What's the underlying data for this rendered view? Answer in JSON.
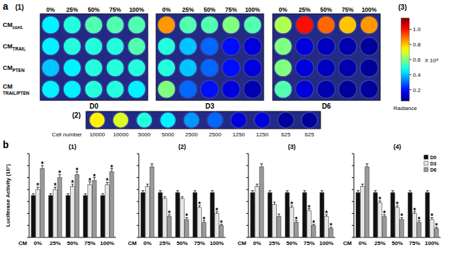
{
  "panel_a": {
    "label": "a",
    "sub_labels": {
      "plates": "(1)",
      "strip": "(2)",
      "colorbar": "(3)"
    },
    "columns": [
      "0%",
      "25%",
      "50%",
      "75%",
      "100%"
    ],
    "rows": [
      {
        "main": "CM",
        "sub": "cont."
      },
      {
        "main": "CM",
        "sub": "TRAIL"
      },
      {
        "main": "CM",
        "sub": "PTEN"
      },
      {
        "main": "CM",
        "sub": "TRAIL/PTEN"
      }
    ],
    "plates": [
      {
        "name": "D0",
        "cells": [
          [
            0.45,
            0.5,
            0.55,
            0.55,
            0.55
          ],
          [
            0.45,
            0.5,
            0.5,
            0.5,
            0.55
          ],
          [
            0.4,
            0.45,
            0.5,
            0.5,
            0.5
          ],
          [
            0.45,
            0.45,
            0.5,
            0.5,
            0.45
          ]
        ]
      },
      {
        "name": "D3",
        "cells": [
          [
            0.85,
            0.55,
            0.55,
            0.6,
            0.55
          ],
          [
            0.5,
            0.4,
            0.3,
            0.2,
            0.15
          ],
          [
            0.5,
            0.4,
            0.3,
            0.2,
            0.15
          ],
          [
            0.6,
            0.3,
            0.2,
            0.15,
            0.1
          ]
        ]
      },
      {
        "name": "D6",
        "cells": [
          [
            0.65,
            1.0,
            0.9,
            0.8,
            0.85
          ],
          [
            0.6,
            0.15,
            0.12,
            0.1,
            0.08
          ],
          [
            0.6,
            0.15,
            0.12,
            0.1,
            0.08
          ],
          [
            0.55,
            0.15,
            0.1,
            0.08,
            0.08
          ]
        ]
      }
    ],
    "strip": {
      "title": "Cell number",
      "cell_numbers": [
        10000,
        10000,
        5000,
        5000,
        2500,
        2500,
        1250,
        1250,
        625,
        625
      ],
      "cells": [
        0.75,
        0.7,
        0.5,
        0.45,
        0.35,
        0.3,
        0.15,
        0.15,
        0.08,
        0.08
      ]
    },
    "colorbar": {
      "range": [
        0.05,
        1.15
      ],
      "ticks": [
        0.2,
        0.4,
        0.6,
        0.8,
        {
          "value": 1,
          "label": "1.0"
        }
      ],
      "multiplier": "X 10⁸",
      "label": "Radiance"
    }
  },
  "panel_b_label": "b",
  "chart_data": [
    {
      "type": "bar",
      "title": "(1)",
      "x_label": "CM",
      "y_label": "Luciferase Activity (10⁷)",
      "categories": [
        "0%",
        "25%",
        "50%",
        "75%",
        "100%"
      ],
      "ylim": [
        0,
        140
      ],
      "yticks": [
        0,
        20,
        40,
        60,
        80,
        100,
        120,
        140
      ],
      "tick_labels": "x",
      "significance_label": "*",
      "series": [
        {
          "name": "D0",
          "color": "#111111",
          "values": [
            70,
            70,
            70,
            70,
            70
          ],
          "errors": [
            3,
            3,
            3,
            3,
            3
          ],
          "significant": [
            false,
            false,
            false,
            false,
            false
          ]
        },
        {
          "name": "D3",
          "color": "#e6e6e6",
          "values": [
            80,
            80,
            85,
            88,
            88
          ],
          "errors": [
            4,
            4,
            4,
            5,
            4
          ],
          "significant": [
            true,
            true,
            true,
            true,
            true
          ]
        },
        {
          "name": "D6",
          "color": "#9a9a9a",
          "values": [
            115,
            100,
            105,
            95,
            110
          ],
          "errors": [
            5,
            5,
            5,
            5,
            5
          ],
          "significant": [
            true,
            true,
            true,
            true,
            true
          ]
        }
      ]
    },
    {
      "type": "bar",
      "title": "(2)",
      "x_label": "CM",
      "categories": [
        "0%",
        "25%",
        "50%",
        "75%",
        "100%"
      ],
      "ylim": [
        0,
        140
      ],
      "yticks": [
        0,
        20,
        40,
        60,
        80,
        100,
        120,
        140
      ],
      "tick_labels": "x",
      "significance_label": "*",
      "series": [
        {
          "name": "D0",
          "color": "#111111",
          "values": [
            75,
            75,
            75,
            75,
            75
          ],
          "errors": [
            3,
            3,
            3,
            3,
            3
          ],
          "significant": [
            false,
            false,
            false,
            false,
            false
          ]
        },
        {
          "name": "D3",
          "color": "#e6e6e6",
          "values": [
            85,
            65,
            65,
            50,
            40
          ],
          "errors": [
            4,
            3,
            3,
            3,
            3
          ],
          "significant": [
            false,
            false,
            false,
            true,
            true
          ]
        },
        {
          "name": "D6",
          "color": "#9a9a9a",
          "values": [
            118,
            35,
            30,
            25,
            20
          ],
          "errors": [
            5,
            3,
            3,
            3,
            2
          ],
          "significant": [
            false,
            true,
            true,
            true,
            true
          ]
        }
      ]
    },
    {
      "type": "bar",
      "title": "(3)",
      "x_label": "CM",
      "categories": [
        "0%",
        "25%",
        "50%",
        "75%",
        "100%"
      ],
      "ylim": [
        0,
        140
      ],
      "yticks": [
        0,
        20,
        40,
        60,
        80,
        100,
        120,
        140
      ],
      "tick_labels": "x",
      "significance_label": "*",
      "series": [
        {
          "name": "D0",
          "color": "#111111",
          "values": [
            75,
            75,
            75,
            75,
            75
          ],
          "errors": [
            3,
            3,
            3,
            3,
            3
          ],
          "significant": [
            false,
            false,
            false,
            false,
            false
          ]
        },
        {
          "name": "D3",
          "color": "#e6e6e6",
          "values": [
            85,
            55,
            50,
            45,
            35
          ],
          "errors": [
            4,
            4,
            3,
            3,
            3
          ],
          "significant": [
            false,
            false,
            true,
            true,
            true
          ]
        },
        {
          "name": "D6",
          "color": "#9a9a9a",
          "values": [
            118,
            35,
            25,
            20,
            15
          ],
          "errors": [
            5,
            4,
            3,
            2,
            2
          ],
          "significant": [
            false,
            false,
            true,
            true,
            true
          ]
        }
      ]
    },
    {
      "type": "bar",
      "title": "(4)",
      "x_label": "CM",
      "categories": [
        "0%",
        "25%",
        "50%",
        "75%",
        "100%"
      ],
      "ylim": [
        0,
        140
      ],
      "yticks": [
        0,
        20,
        40,
        60,
        80,
        100,
        120,
        140
      ],
      "tick_labels": "x",
      "legend": "upper right",
      "significance_label": "*",
      "series": [
        {
          "name": "D0",
          "color": "#111111",
          "values": [
            75,
            75,
            75,
            75,
            75
          ],
          "errors": [
            3,
            3,
            3,
            3,
            3
          ],
          "significant": [
            false,
            false,
            false,
            false,
            false
          ]
        },
        {
          "name": "D3",
          "color": "#e6e6e6",
          "values": [
            85,
            58,
            50,
            40,
            30
          ],
          "errors": [
            4,
            3,
            3,
            3,
            3
          ],
          "significant": [
            false,
            true,
            true,
            true,
            true
          ]
        },
        {
          "name": "D6",
          "color": "#9a9a9a",
          "values": [
            118,
            35,
            30,
            25,
            15
          ],
          "errors": [
            5,
            3,
            3,
            3,
            2
          ],
          "significant": [
            false,
            true,
            true,
            true,
            true
          ]
        }
      ]
    }
  ]
}
